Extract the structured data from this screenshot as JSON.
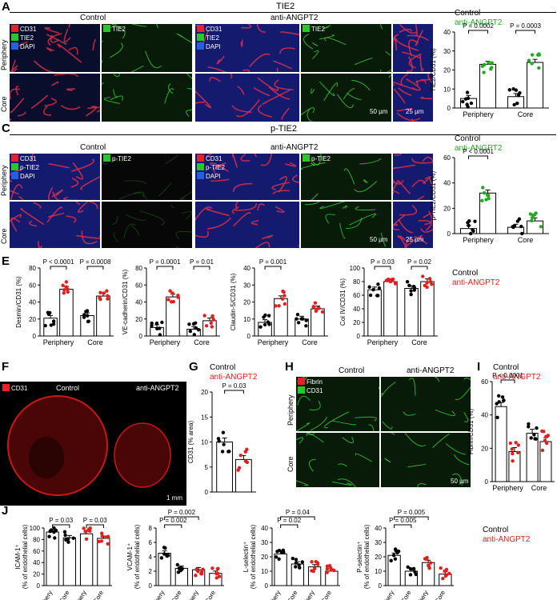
{
  "panels": {
    "A": "A",
    "B": "B",
    "C": "C",
    "D": "D",
    "E": "E",
    "F": "F",
    "G": "G",
    "H": "H",
    "I": "I",
    "J": "J"
  },
  "panelA": {
    "title": "TIE2",
    "control": "Control",
    "treat": "anti-ANGPT2",
    "rows": [
      "Periphery",
      "Core"
    ],
    "legend": [
      "CD31",
      "TIE2",
      "DAPI"
    ],
    "single": "TIE2",
    "scale1": "50 µm",
    "scale2": "25 µm"
  },
  "panelC": {
    "title": "p-TIE2",
    "control": "Control",
    "treat": "anti-ANGPT2",
    "rows": [
      "Periphery",
      "Core"
    ],
    "legend": [
      "CD31",
      "p-TIE2",
      "DAPI"
    ],
    "single": "p-TIE2",
    "scale1": "50 µm",
    "scale2": "25 µm"
  },
  "panelF": {
    "legend": "CD31",
    "control": "Control",
    "treat": "anti-ANGPT2",
    "scale": "1 mm"
  },
  "panelH": {
    "control": "Control",
    "treat": "anti-ANGPT2",
    "rows": [
      "Periphery",
      "Core"
    ],
    "legend": [
      "Fibrin",
      "CD31"
    ],
    "scale": "50 µm"
  },
  "legends": {
    "control": "Control",
    "anti_green": "anti-ANGPT2",
    "anti_red": "anti-ANGPT2"
  },
  "colors": {
    "control": "#000000",
    "anti_green": "#22aa22",
    "anti_red": "#e0201c"
  },
  "chart_data": [
    {
      "id": "B",
      "type": "bar",
      "categories": [
        "Periphery",
        "Core"
      ],
      "series": [
        {
          "name": "Control",
          "values": [
            5,
            6
          ]
        },
        {
          "name": "anti-ANGPT2",
          "values": [
            23,
            24
          ]
        }
      ],
      "ylabel": "TIE2/CD31 (%)",
      "ylim": [
        0,
        40
      ],
      "yticks": [
        0,
        10,
        20,
        30,
        40
      ],
      "pvalues": [
        "P = 0.0002",
        "P = 0.0003"
      ]
    },
    {
      "id": "D",
      "type": "bar",
      "categories": [
        "Periphery",
        "Core"
      ],
      "series": [
        {
          "name": "Control",
          "values": [
            4,
            5
          ]
        },
        {
          "name": "anti-ANGPT2",
          "values": [
            32,
            10
          ]
        }
      ],
      "ylabel": "p-TIE2/CD31 (%)",
      "ylim": [
        0,
        60
      ],
      "yticks": [
        0,
        20,
        40,
        60
      ],
      "pvalues": [
        "P < 0.0001"
      ]
    },
    {
      "id": "E1",
      "type": "bar",
      "categories": [
        "Periphery",
        "Core"
      ],
      "series": [
        {
          "name": "Control",
          "values": [
            21,
            24
          ]
        },
        {
          "name": "anti-ANGPT2",
          "values": [
            55,
            47
          ]
        }
      ],
      "ylabel": "Desmin/CD31 (%)",
      "ylim": [
        0,
        80
      ],
      "yticks": [
        0,
        20,
        40,
        60,
        80
      ],
      "pvalues": [
        "P < 0.0001",
        "P = 0.0008"
      ]
    },
    {
      "id": "E2",
      "type": "bar",
      "categories": [
        "Periphery",
        "Core"
      ],
      "series": [
        {
          "name": "Control",
          "values": [
            10,
            8
          ]
        },
        {
          "name": "anti-ANGPT2",
          "values": [
            46,
            18
          ]
        }
      ],
      "ylabel": "VE-cadherin/CD31 (%)",
      "ylim": [
        0,
        80
      ],
      "yticks": [
        0,
        20,
        40,
        60,
        80
      ],
      "pvalues": [
        "P = 0.0001",
        "P = 0.01"
      ]
    },
    {
      "id": "E3",
      "type": "bar",
      "categories": [
        "Periphery",
        "Core"
      ],
      "series": [
        {
          "name": "Control",
          "values": [
            8,
            10
          ]
        },
        {
          "name": "anti-ANGPT2",
          "values": [
            22,
            16
          ]
        }
      ],
      "ylabel": "Claudin-5/CD31 (%)",
      "ylim": [
        0,
        40
      ],
      "yticks": [
        0,
        10,
        20,
        30,
        40
      ],
      "pvalues": [
        "P = 0.001"
      ]
    },
    {
      "id": "E4",
      "type": "bar",
      "categories": [
        "Periphery",
        "Core"
      ],
      "series": [
        {
          "name": "Control",
          "values": [
            68,
            70
          ]
        },
        {
          "name": "anti-ANGPT2",
          "values": [
            80,
            80
          ]
        }
      ],
      "ylabel": "Col IV/CD31 (%)",
      "ylim": [
        0,
        100
      ],
      "yticks": [
        0,
        20,
        40,
        60,
        80,
        100
      ],
      "pvalues": [
        "P = 0.03",
        "P = 0.02"
      ]
    },
    {
      "id": "G",
      "type": "bar",
      "categories": [
        ""
      ],
      "series": [
        {
          "name": "Control",
          "values": [
            10
          ]
        },
        {
          "name": "anti-ANGPT2",
          "values": [
            6.5
          ]
        }
      ],
      "ylabel": "CD31 (% area)",
      "ylim": [
        0,
        20
      ],
      "yticks": [
        0,
        5,
        10,
        15,
        20
      ],
      "pvalues": [
        "P = 0.03"
      ]
    },
    {
      "id": "I",
      "type": "bar",
      "categories": [
        "Periphery",
        "Core"
      ],
      "series": [
        {
          "name": "Control",
          "values": [
            45,
            29
          ]
        },
        {
          "name": "anti-ANGPT2",
          "values": [
            18,
            24
          ]
        }
      ],
      "ylabel": "Fibrin/CD31 (%)",
      "ylim": [
        0,
        60
      ],
      "yticks": [
        0,
        20,
        40,
        60
      ],
      "pvalues": [
        "P < 0.0001"
      ]
    },
    {
      "id": "J1",
      "type": "bar",
      "categories": [
        "Periphery",
        "Core",
        "Periphery",
        "Core"
      ],
      "series": [
        {
          "name": "",
          "values": [
            93,
            83,
            90,
            82
          ]
        }
      ],
      "ylabel": "ICAM-1⁺ (% of endothelial cells)",
      "ylim": [
        0,
        100
      ],
      "yticks": [
        0,
        20,
        40,
        60,
        80,
        100
      ],
      "pvalues": [
        "P = 0.03",
        "P = 0.03"
      ]
    },
    {
      "id": "J2",
      "type": "bar",
      "categories": [
        "Periphery",
        "Core",
        "Periphery",
        "Core"
      ],
      "series": [
        {
          "name": "",
          "values": [
            4.5,
            2.4,
            2.2,
            1.7
          ]
        }
      ],
      "ylabel": "VCAM-1⁺ (% of endothelial cells)",
      "ylim": [
        0,
        8
      ],
      "yticks": [
        0,
        2,
        4,
        6,
        8
      ],
      "pvalues": [
        "P = 0.002",
        "P = 0.002"
      ]
    },
    {
      "id": "J3",
      "type": "bar",
      "categories": [
        "Periphery",
        "Core",
        "Periphery",
        "Core"
      ],
      "series": [
        {
          "name": "",
          "values": [
            22,
            15,
            13,
            10
          ]
        }
      ],
      "ylabel": "L-selectin⁺ (% of endothelial cells)",
      "ylim": [
        0,
        40
      ],
      "yticks": [
        0,
        10,
        20,
        30,
        40
      ],
      "pvalues": [
        "P = 0.02",
        "P = 0.04"
      ]
    },
    {
      "id": "J4",
      "type": "bar",
      "categories": [
        "Periphery",
        "Core",
        "Periphery",
        "Core"
      ],
      "series": [
        {
          "name": "",
          "values": [
            21,
            10,
            16,
            8
          ]
        }
      ],
      "ylabel": "P-selectin⁺ (% of endothelial cells)",
      "ylim": [
        0,
        40
      ],
      "yticks": [
        0,
        10,
        20,
        30,
        40
      ],
      "pvalues": [
        "P = 0.005",
        "P = 0.005"
      ]
    }
  ]
}
